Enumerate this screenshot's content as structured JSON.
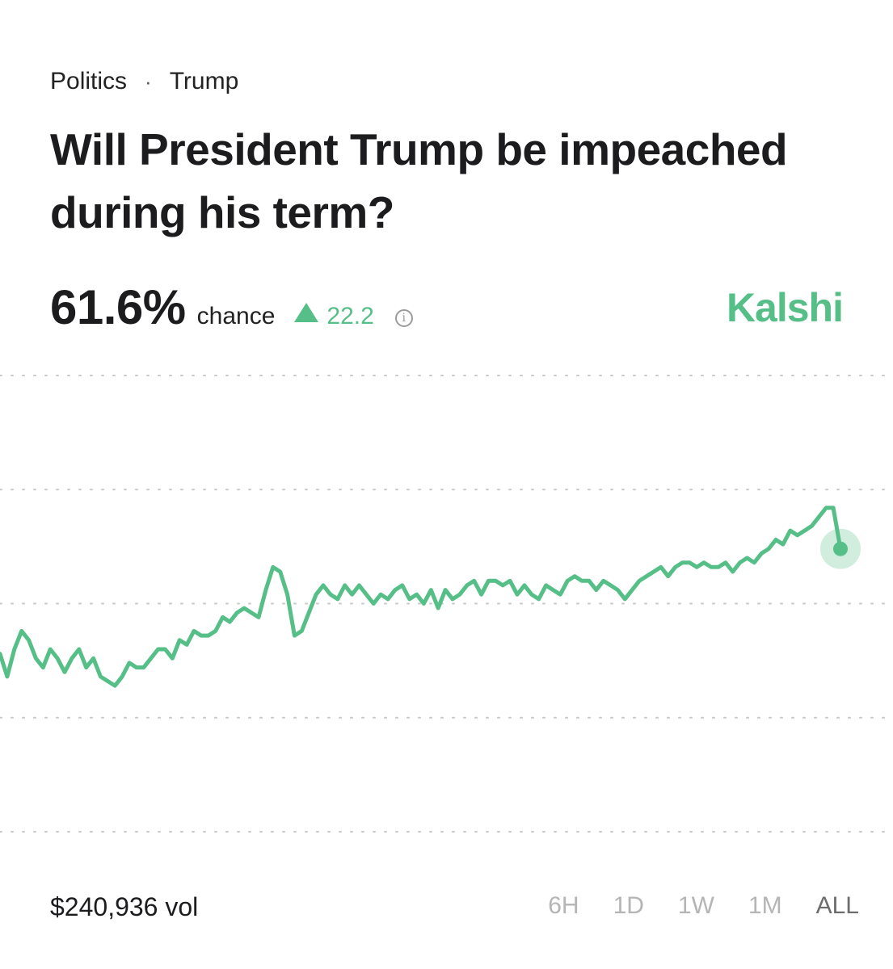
{
  "breadcrumb": {
    "category": "Politics",
    "separator": "·",
    "subcategory": "Trump"
  },
  "market": {
    "title": "Will President Trump be impeached during his term?",
    "probability": "61.6%",
    "chance_label": "chance",
    "change": "22.2",
    "change_direction": "up",
    "info_icon": "info-icon",
    "brand": "Kalshi",
    "volume": "$240,936 vol"
  },
  "colors": {
    "accent": "#56bf88",
    "gridline": "#c8c8c8",
    "text": "#1c1c1e"
  },
  "time_ranges": [
    {
      "label": "6H",
      "active": false
    },
    {
      "label": "1D",
      "active": false
    },
    {
      "label": "1W",
      "active": false
    },
    {
      "label": "1M",
      "active": false
    },
    {
      "label": "ALL",
      "active": true
    }
  ],
  "chart_data": {
    "type": "line",
    "grid": true,
    "axes_labels_shown": false,
    "ylim": [
      0,
      100
    ],
    "last_value": 61.6,
    "series": [
      {
        "values": [
          39,
          34,
          40,
          44,
          42,
          38,
          36,
          40,
          38,
          35,
          38,
          40,
          36,
          38,
          34,
          33,
          32,
          34,
          37,
          36,
          36,
          38,
          40,
          40,
          38,
          42,
          41,
          44,
          43,
          43,
          44,
          47,
          46,
          48,
          49,
          48,
          47,
          53,
          58,
          57,
          52,
          43,
          44,
          48,
          52,
          54,
          52,
          51,
          54,
          52,
          54,
          52,
          50,
          52,
          51,
          53,
          54,
          51,
          52,
          50,
          53,
          49,
          53,
          51,
          52,
          54,
          55,
          52,
          55,
          55,
          54,
          55,
          52,
          54,
          52,
          51,
          54,
          53,
          52,
          55,
          56,
          55,
          55,
          53,
          55,
          54,
          53,
          51,
          53,
          55,
          56,
          57,
          58,
          56,
          58,
          59,
          59,
          58,
          59,
          58,
          58,
          59,
          57,
          59,
          60,
          59,
          61,
          62,
          64,
          63,
          66,
          65,
          66,
          67,
          69,
          71,
          71,
          62
        ]
      }
    ]
  }
}
